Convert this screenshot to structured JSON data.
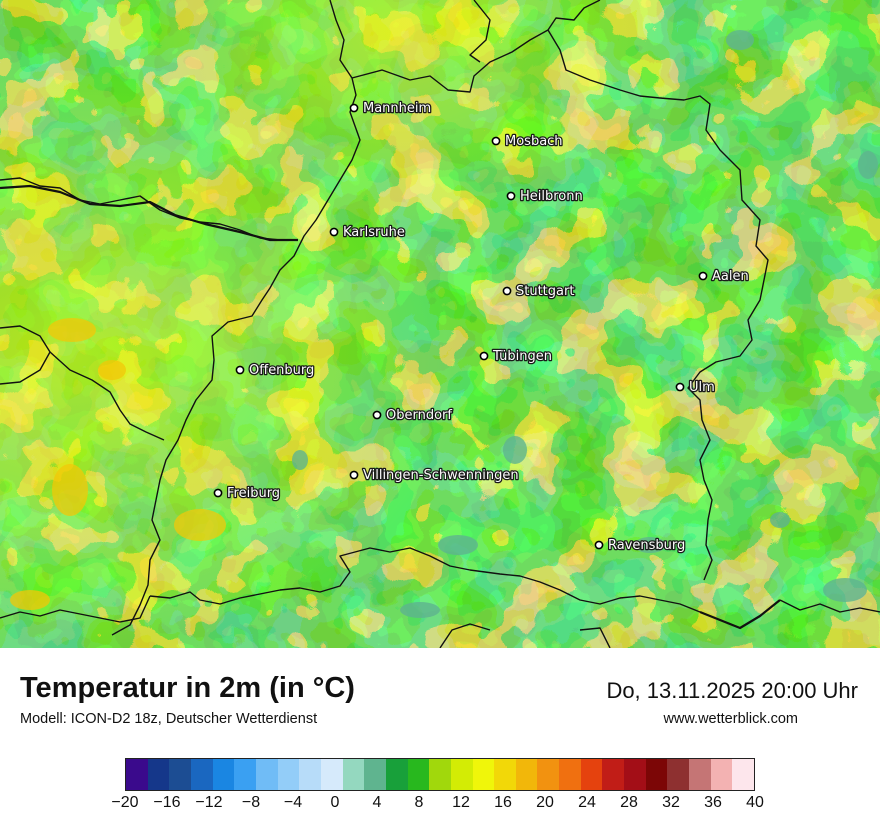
{
  "title": "Temperatur in 2m (in °C)",
  "model": "Modell: ICON-D2 18z, Deutscher Wetterdienst",
  "datetime": "Do, 13.11.2025 20:00 Uhr",
  "source": "www.wetterblick.com",
  "cities": [
    {
      "name": "Mannheim"
    },
    {
      "name": "Mosbach"
    },
    {
      "name": "Heilbronn"
    },
    {
      "name": "Karlsruhe"
    },
    {
      "name": "Aalen"
    },
    {
      "name": "Stuttgart"
    },
    {
      "name": "Tübingen"
    },
    {
      "name": "Offenburg"
    },
    {
      "name": "Ulm"
    },
    {
      "name": "Oberndorf"
    },
    {
      "name": "Villingen-Schwenningen"
    },
    {
      "name": "Freiburg"
    },
    {
      "name": "Ravensburg"
    }
  ],
  "legend": {
    "ticks": [
      "−20",
      "−16",
      "−12",
      "−8",
      "−4",
      "0",
      "4",
      "8",
      "12",
      "16",
      "20",
      "24",
      "28",
      "32",
      "36",
      "40"
    ],
    "colors": [
      "#3a0a8c",
      "#15378a",
      "#1c4d93",
      "#1a67c0",
      "#1a86e2",
      "#3aa0f2",
      "#70bcf6",
      "#93cdf8",
      "#b7dcf9",
      "#d6eafb",
      "#94d8bf",
      "#5fb48f",
      "#18a03a",
      "#28b81e",
      "#a1d80c",
      "#d3ec05",
      "#f0f60a",
      "#f2d808",
      "#f2b70a",
      "#f29210",
      "#f07010",
      "#e5420e",
      "#c11d17",
      "#a30e17",
      "#7c0606",
      "#8e3030",
      "#c57575",
      "#f3b2b2",
      "#fde6ec"
    ]
  }
}
